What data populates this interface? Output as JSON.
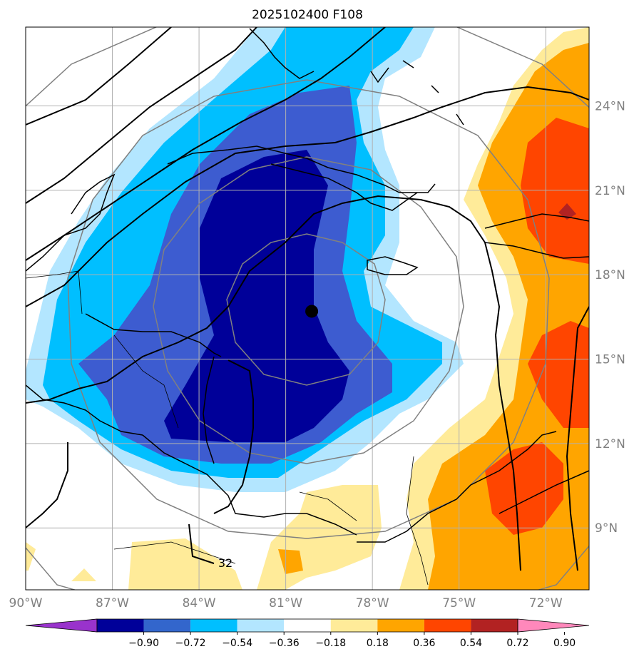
{
  "title": "2025102400 F108",
  "map": {
    "lon_range": [
      -90,
      -70.5
    ],
    "lat_range": [
      6.8,
      26.8
    ],
    "lon_ticks": [
      {
        "value": -90,
        "label": "90°W"
      },
      {
        "value": -87,
        "label": "87°W"
      },
      {
        "value": -84,
        "label": "84°W"
      },
      {
        "value": -81,
        "label": "81°W"
      },
      {
        "value": -78,
        "label": "78°W"
      },
      {
        "value": -75,
        "label": "75°W"
      },
      {
        "value": -72,
        "label": "72°W"
      }
    ],
    "lat_ticks": [
      {
        "value": 24,
        "label": "24°N"
      },
      {
        "value": 21,
        "label": "21°N"
      },
      {
        "value": 18,
        "label": "18°N"
      },
      {
        "value": 15,
        "label": "15°N"
      },
      {
        "value": 12,
        "label": "12°N"
      },
      {
        "value": 9,
        "label": "9°N"
      }
    ],
    "storm_center": {
      "lon": -80.1,
      "lat": 16.7
    },
    "contour_label": "32"
  },
  "colorbar": {
    "ticks": [
      "−0.90",
      "−0.72",
      "−0.54",
      "−0.36",
      "−0.18",
      "0.18",
      "0.36",
      "0.54",
      "0.72",
      "0.90"
    ],
    "colors": [
      "#9933cc",
      "#000099",
      "#3366cc",
      "#00bfff",
      "#b3e6ff",
      "#ffffff",
      "#ffeb99",
      "#ffa500",
      "#ff4500",
      "#b22222",
      "#ff88bb"
    ]
  },
  "colors": {
    "neg_strong": "#000099",
    "neg_mid": "#3d5cd0",
    "neg_light": "#00bfff",
    "neg_pale": "#b3e6ff",
    "pos_pale": "#ffeb99",
    "pos_mid": "#ffa500",
    "pos_strong": "#ff4500",
    "pos_max": "#b22222",
    "grid": "#b0b0b0",
    "range_ring": "#808080"
  }
}
